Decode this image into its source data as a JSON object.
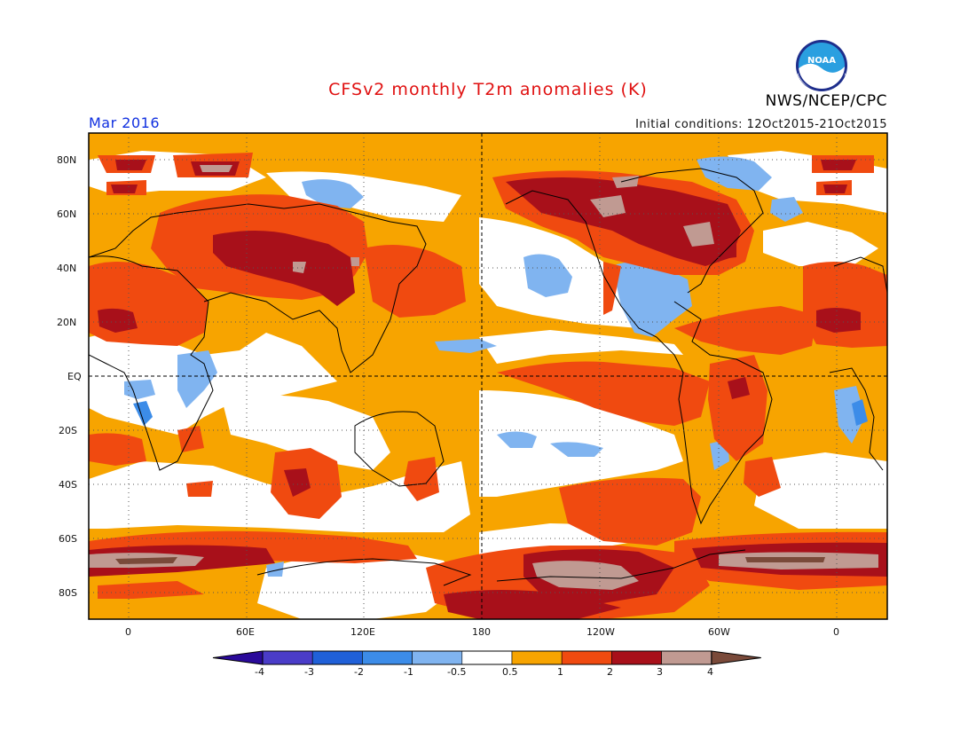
{
  "header": {
    "title": "CFSv2 monthly T2m anomalies (K)",
    "agency": "NWS/NCEP/CPC",
    "logo_text": "NOAA",
    "valid_month": "Mar 2016",
    "initial_conditions": "Initial conditions: 12Oct2015-21Oct2015"
  },
  "map": {
    "projection": "equirectangular",
    "lon_range": [
      -20,
      380
    ],
    "lat_range": [
      -90,
      90
    ],
    "lat_labels": [
      "80N",
      "60N",
      "40N",
      "20N",
      "EQ",
      "20S",
      "40S",
      "60S",
      "80S"
    ],
    "lon_labels": [
      "0",
      "60E",
      "120E",
      "180",
      "120W",
      "60W",
      "0"
    ],
    "reference_lines": [
      "Equator (dashed)",
      "180 meridian (dashed)"
    ],
    "grid": "dotted every 20 degrees"
  },
  "colorbar": {
    "tick_labels": [
      "-4",
      "-3",
      "-2",
      "-1",
      "-0.5",
      "0.5",
      "1",
      "2",
      "3",
      "4"
    ],
    "colors": [
      "#2a0a9a",
      "#4a3cc8",
      "#2060d8",
      "#3c8ce8",
      "#80b4f0",
      "#ffffff",
      "#f7a400",
      "#f04a10",
      "#a8101a",
      "#c09a92",
      "#7a4a3a"
    ]
  }
}
